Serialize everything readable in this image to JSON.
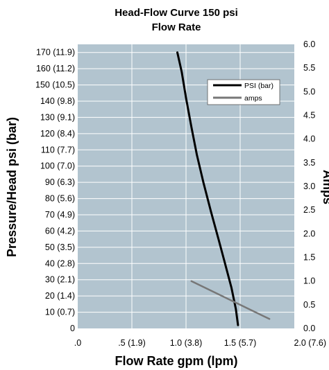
{
  "chart_data": {
    "type": "line",
    "title": "Head-Flow Curve 150 psi",
    "subtitle": "Flow Rate",
    "xlabel": "Flow Rate gpm (lpm)",
    "ylabel": "Pressure/Head psi (bar)",
    "y2label": "Amps",
    "xlim": [
      0,
      2.0
    ],
    "ylim": [
      0,
      175
    ],
    "y2lim": [
      0,
      6.0
    ],
    "x_ticks": [
      {
        "value": 0,
        "label": ".0"
      },
      {
        "value": 0.5,
        "label": ".5 (1.9)"
      },
      {
        "value": 1.0,
        "label": "1.0 (3.8)"
      },
      {
        "value": 1.5,
        "label": "1.5 (5.7)"
      },
      {
        "value": 2.0,
        "label": "2.0 (7.6)"
      }
    ],
    "y_ticks": [
      {
        "value": 0,
        "label": "0"
      },
      {
        "value": 10,
        "label": "10 (0.7)"
      },
      {
        "value": 20,
        "label": "20 (1.4)"
      },
      {
        "value": 30,
        "label": "30 (2.1)"
      },
      {
        "value": 40,
        "label": "40 (2.8)"
      },
      {
        "value": 50,
        "label": "50 (3.5)"
      },
      {
        "value": 60,
        "label": "60 (4.2)"
      },
      {
        "value": 70,
        "label": "70 (4.9)"
      },
      {
        "value": 80,
        "label": "80 (5.6)"
      },
      {
        "value": 90,
        "label": "90 (6.3)"
      },
      {
        "value": 100,
        "label": "100 (7.0)"
      },
      {
        "value": 110,
        "label": "110 (7.7)"
      },
      {
        "value": 120,
        "label": "120 (8.4)"
      },
      {
        "value": 130,
        "label": "130 (9.1)"
      },
      {
        "value": 140,
        "label": "140 (9.8)"
      },
      {
        "value": 150,
        "label": "150 (10.5)"
      },
      {
        "value": 160,
        "label": "160 (11.2)"
      },
      {
        "value": 170,
        "label": "170 (11.9)"
      }
    ],
    "y2_ticks": [
      {
        "value": 0.0,
        "label": "0.0"
      },
      {
        "value": 0.5,
        "label": "0.5"
      },
      {
        "value": 1.0,
        "label": "1.0"
      },
      {
        "value": 1.5,
        "label": "1.5"
      },
      {
        "value": 2.0,
        "label": "2.0"
      },
      {
        "value": 2.5,
        "label": "2.5"
      },
      {
        "value": 3.0,
        "label": "3.0"
      },
      {
        "value": 3.5,
        "label": "3.5"
      },
      {
        "value": 4.0,
        "label": "4.0"
      },
      {
        "value": 4.5,
        "label": "4.5"
      },
      {
        "value": 5.0,
        "label": "5.0"
      },
      {
        "value": 5.5,
        "label": "5.5"
      },
      {
        "value": 6.0,
        "label": "6.0"
      }
    ],
    "series": [
      {
        "name": "PSI (bar)",
        "axis": "left",
        "color": "#000000",
        "x": [
          0.92,
          0.96,
          1.0,
          1.05,
          1.1,
          1.16,
          1.23,
          1.3,
          1.36,
          1.42,
          1.46,
          1.48
        ],
        "y": [
          170,
          158,
          142,
          124,
          107,
          90,
          72,
          55,
          40,
          25,
          12,
          2
        ]
      },
      {
        "name": "amps",
        "axis": "right",
        "color": "#777777",
        "x": [
          1.05,
          1.77
        ],
        "y": [
          1.0,
          0.2
        ]
      }
    ],
    "grid": true,
    "plot_background": "#b2c4cf",
    "gridline_color": "#ffffff",
    "legend_position": "top-right"
  }
}
